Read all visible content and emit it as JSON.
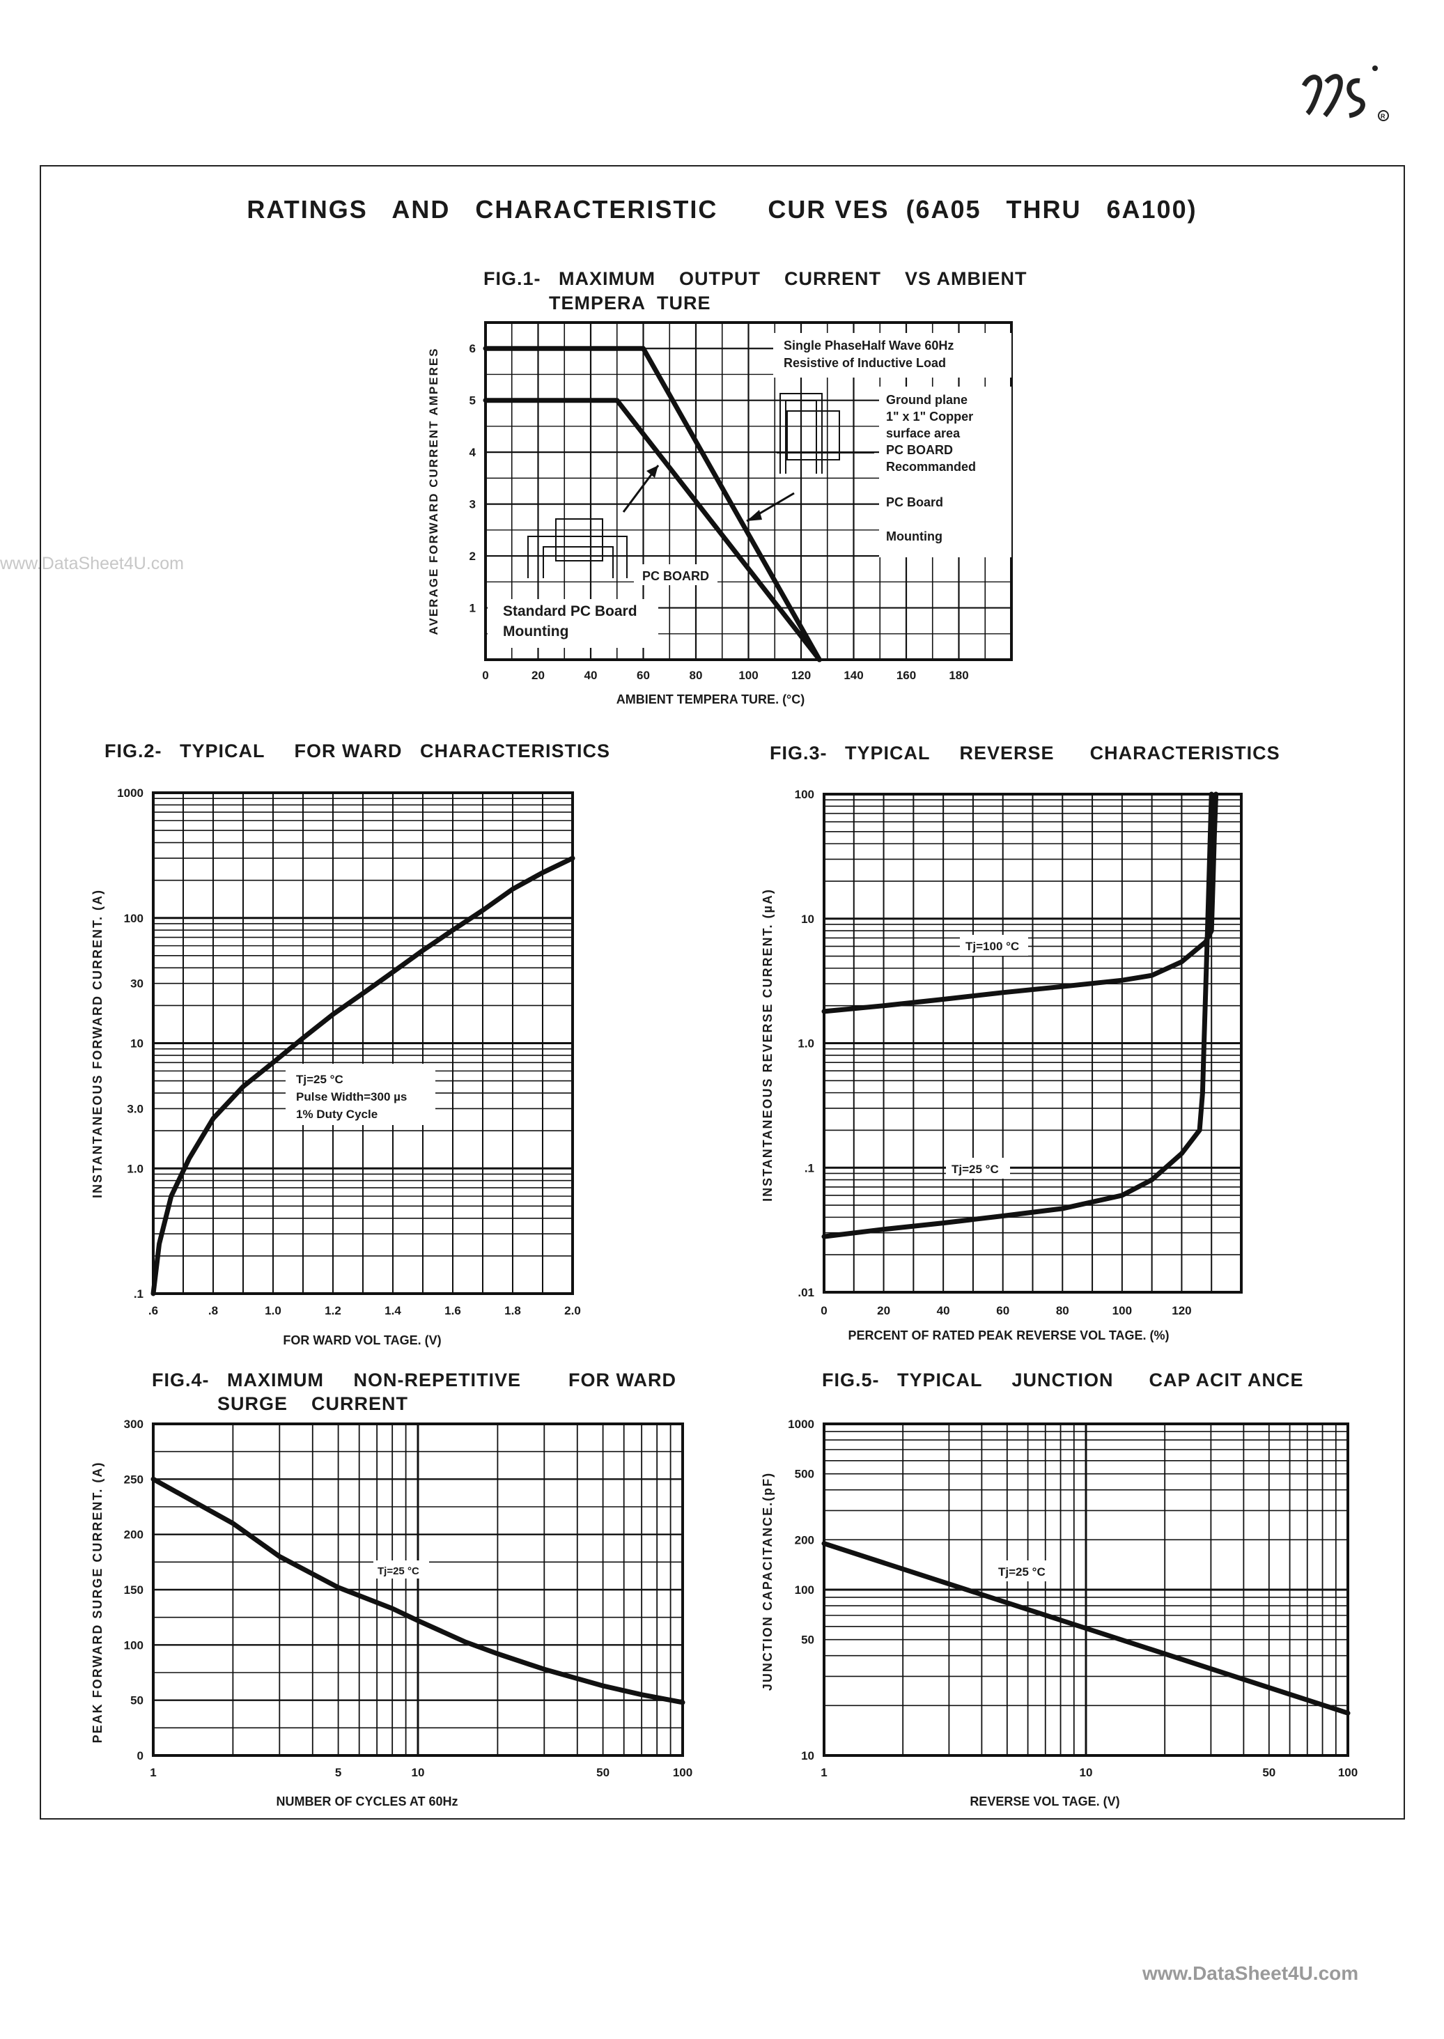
{
  "page": {
    "title": "RATINGS   AND   CHARACTERISTIC      CUR VES  (6A05   THRU   6A100)",
    "watermark_left": "www.DataSheet4U.com",
    "watermark_bottom": "www.DataSheet4U.com"
  },
  "chart_data": [
    {
      "id": "fig1",
      "type": "line",
      "title": "FIG.1-   MAXIMUM    OUTPUT    CURRENT    VS AMBIENT",
      "title_line2": "TEMPERA  TURE",
      "xlabel": "AMBIENT   TEMPERA  TURE.  (°C)",
      "ylabel": "AVERAGE FORWARD CURRENT AMPERES",
      "xlim": [
        0,
        200
      ],
      "ylim": [
        0,
        6.5
      ],
      "x_ticks": [
        0,
        20,
        40,
        60,
        80,
        100,
        120,
        140,
        160,
        180
      ],
      "y_ticks": [
        1,
        2,
        3,
        4,
        5,
        6
      ],
      "grid": true,
      "series": [
        {
          "x": [
            0,
            60,
            127
          ],
          "y": [
            6,
            6,
            0
          ]
        },
        {
          "x": [
            0,
            50,
            127
          ],
          "y": [
            5,
            5,
            0
          ]
        }
      ],
      "annotations": {
        "legend_box": [
          "Single  PhaseHalf   Wave  60Hz",
          "Resistive   of  Inductive   Load"
        ],
        "ground_plane": [
          "Ground   plane",
          "1\"  x  1\"  Copper",
          "surface   area",
          "PC  BOARD",
          "Recommanded"
        ],
        "pc_board_mounting": [
          "PC   Board",
          "Mounting"
        ],
        "pc_board": "PC   BOARD",
        "standard": [
          "Standard    PC   Board",
          "Mounting"
        ]
      }
    },
    {
      "id": "fig2",
      "type": "line",
      "title": "FIG.2-   TYPICAL     FOR WARD   CHARACTERISTICS",
      "xlabel": "FOR WARD   VOL TAGE.  (V)",
      "ylabel": "INSTANTANEOUS FORWARD CURRENT. (A)",
      "xlim": [
        0.6,
        2.0
      ],
      "ylim": [
        0.1,
        1000
      ],
      "y_scale": "log",
      "x_tick_labels": [
        ".6",
        ".8",
        "1.0",
        "1.2",
        "1.4",
        "1.6",
        "1.8",
        "2.0"
      ],
      "y_tick_labels": [
        {
          "v": 1000,
          "t": "1000"
        },
        {
          "v": 100,
          "t": "100"
        },
        {
          "v": 30,
          "t": "30"
        },
        {
          "v": 10,
          "t": "10"
        },
        {
          "v": 3,
          "t": "3.0"
        },
        {
          "v": 1,
          "t": "1.0"
        },
        {
          "v": 0.1,
          "t": ".1"
        }
      ],
      "grid": true,
      "series": [
        {
          "x": [
            0.6,
            0.62,
            0.66,
            0.72,
            0.8,
            0.9,
            1.0,
            1.1,
            1.2,
            1.3,
            1.4,
            1.5,
            1.6,
            1.7,
            1.8,
            1.9,
            2.0
          ],
          "y": [
            0.1,
            0.25,
            0.6,
            1.2,
            2.5,
            4.5,
            7,
            11,
            17,
            25,
            37,
            55,
            80,
            115,
            170,
            230,
            300
          ]
        }
      ],
      "annotation": [
        "Tj=25  °C",
        "Pulse   Width=300   µs",
        "1%   Duty   Cycle"
      ]
    },
    {
      "id": "fig3",
      "type": "line",
      "title": "FIG.3-   TYPICAL     REVERSE      CHARACTERISTICS",
      "xlabel": "PERCENT     OF  RATED   PEAK   REVERSE     VOL TAGE.  (%)",
      "ylabel": "INSTANTANEOUS REVERSE CURRENT. (µA)",
      "xlim": [
        0,
        140
      ],
      "ylim": [
        0.01,
        100
      ],
      "y_scale": "log",
      "x_tick_labels": [
        "0",
        "20",
        "40",
        "60",
        "80",
        "100",
        "120"
      ],
      "y_tick_labels": [
        {
          "v": 100,
          "t": "100"
        },
        {
          "v": 10,
          "t": "10"
        },
        {
          "v": 1,
          "t": "1.0"
        },
        {
          "v": 0.1,
          "t": ".1"
        },
        {
          "v": 0.01,
          "t": ".01"
        }
      ],
      "grid": true,
      "series": [
        {
          "name": "Tj=100  °C",
          "x": [
            0,
            20,
            40,
            60,
            80,
            100,
            110,
            120,
            128,
            130,
            130.5,
            131,
            131.5
          ],
          "y": [
            1.8,
            2.0,
            2.25,
            2.55,
            2.85,
            3.2,
            3.5,
            4.5,
            6.5,
            8,
            20,
            50,
            100
          ]
        },
        {
          "name": "Tj=25  °C",
          "x": [
            0,
            20,
            40,
            60,
            80,
            100,
            110,
            120,
            126,
            127,
            127.5,
            128,
            128.5,
            129,
            129.5,
            130
          ],
          "y": [
            0.028,
            0.032,
            0.036,
            0.041,
            0.047,
            0.06,
            0.08,
            0.13,
            0.2,
            0.4,
            1,
            2.5,
            6,
            15,
            40,
            100
          ]
        }
      ]
    },
    {
      "id": "fig4",
      "type": "line",
      "title": "FIG.4-   MAXIMUM     NON-REPETITIVE        FOR WARD",
      "title_line2": "SURGE    CURRENT",
      "xlabel": "NUMBER     OF   CYCLES    AT 60Hz",
      "ylabel": "PEAK FORWARD SURGE CURRENT. (A)",
      "xlim": [
        1,
        100
      ],
      "ylim": [
        0,
        300
      ],
      "x_scale": "log",
      "x_tick_labels": [
        {
          "v": 1,
          "t": "1"
        },
        {
          "v": 5,
          "t": "5"
        },
        {
          "v": 10,
          "t": "10"
        },
        {
          "v": 50,
          "t": "50"
        },
        {
          "v": 100,
          "t": "100"
        }
      ],
      "y_tick_labels": [
        0,
        50,
        100,
        150,
        200,
        250,
        300
      ],
      "grid": true,
      "series": [
        {
          "x": [
            1,
            2,
            3,
            5,
            8,
            10,
            15,
            20,
            30,
            50,
            70,
            100
          ],
          "y": [
            250,
            210,
            180,
            152,
            133,
            122,
            103,
            92,
            78,
            63,
            55,
            48
          ]
        }
      ],
      "annotation": "Tj=25  °C"
    },
    {
      "id": "fig5",
      "type": "line",
      "title": "FIG.5-   TYPICAL     JUNCTION      CAP ACIT ANCE",
      "xlabel": "REVERSE      VOL TAGE.  (V)",
      "ylabel": "JUNCTION CAPACITANCE.(pF)",
      "xlim": [
        1,
        100
      ],
      "ylim": [
        10,
        1000
      ],
      "x_scale": "log",
      "y_scale": "log",
      "x_tick_labels": [
        {
          "v": 1,
          "t": "1"
        },
        {
          "v": 10,
          "t": "10"
        },
        {
          "v": 50,
          "t": "50"
        },
        {
          "v": 100,
          "t": "100"
        }
      ],
      "y_tick_labels": [
        {
          "v": 1000,
          "t": "1000"
        },
        {
          "v": 500,
          "t": "500"
        },
        {
          "v": 200,
          "t": "200"
        },
        {
          "v": 100,
          "t": "100"
        },
        {
          "v": 50,
          "t": "50"
        },
        {
          "v": 10,
          "t": "10"
        }
      ],
      "grid": true,
      "series": [
        {
          "x": [
            1,
            100
          ],
          "y": [
            190,
            18
          ]
        }
      ],
      "annotation": "Tj=25  °C"
    }
  ]
}
